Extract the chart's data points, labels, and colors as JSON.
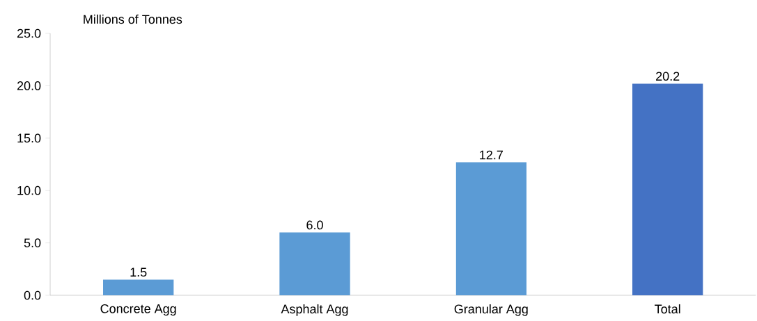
{
  "chart_data": {
    "type": "bar",
    "ylabel": "Millions of Tonnes",
    "categories": [
      "Concrete Agg",
      "Asphalt Agg",
      "Granular Agg",
      "Total"
    ],
    "values": [
      1.5,
      6.0,
      12.7,
      20.2
    ],
    "colors": [
      "#5b9bd5",
      "#5b9bd5",
      "#5b9bd5",
      "#4472c4"
    ],
    "value_labels": [
      "1.5",
      "6.0",
      "12.7",
      "20.2"
    ],
    "ylim": [
      0,
      25
    ],
    "yticks": [
      {
        "value": 0,
        "label": "0.0"
      },
      {
        "value": 5,
        "label": "5.0"
      },
      {
        "value": 10,
        "label": "10.0"
      },
      {
        "value": 15,
        "label": "15.0"
      },
      {
        "value": 20,
        "label": "20.0"
      },
      {
        "value": 25,
        "label": "25.0"
      }
    ],
    "grid": false
  }
}
